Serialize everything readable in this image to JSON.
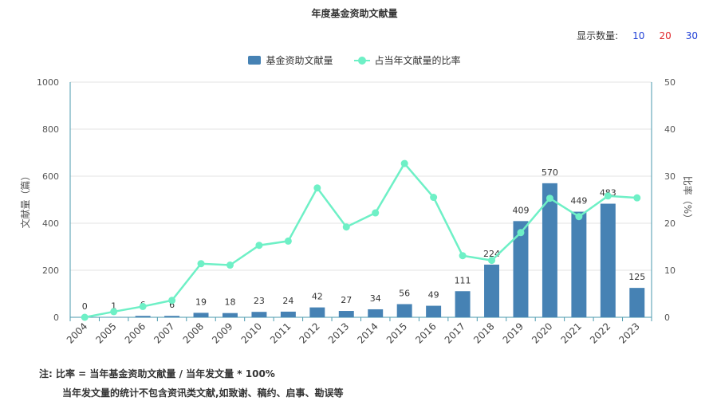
{
  "title": "年度基金资助文献量",
  "count_selector": {
    "label": "显示数量:",
    "options": [
      "10",
      "20",
      "30"
    ]
  },
  "legend": {
    "bar": "基金资助文献量",
    "line": "占当年文献量的比率"
  },
  "colors": {
    "bar": "#4682b4",
    "line": "#6ef0c6",
    "axis": "#4a9aad",
    "grid": "#e3e3e3"
  },
  "notes": {
    "line1": "注:  比率 = 当年基金资助文献量 / 当年发文量 * 100%",
    "line2": "当年发文量的统计不包含资讯类文献,如致谢、稿约、启事、勘误等"
  },
  "chart_data": {
    "type": "bar",
    "title": "年度基金资助文献量",
    "ylabel": "文献量（篇）",
    "y2label": "比率（%）",
    "ylim": [
      0,
      1000
    ],
    "y2lim": [
      0,
      50
    ],
    "yticks": [
      0,
      200,
      400,
      600,
      800,
      1000
    ],
    "y2ticks": [
      0,
      10,
      20,
      30,
      40,
      50
    ],
    "categories": [
      "2004",
      "2005",
      "2006",
      "2007",
      "2008",
      "2009",
      "2010",
      "2011",
      "2012",
      "2013",
      "2014",
      "2015",
      "2016",
      "2017",
      "2018",
      "2019",
      "2020",
      "2021",
      "2022",
      "2023"
    ],
    "series": [
      {
        "name": "基金资助文献量",
        "type": "bar",
        "axis": "left",
        "values": [
          0,
          1,
          6,
          6,
          19,
          18,
          23,
          24,
          42,
          27,
          34,
          56,
          49,
          111,
          224,
          409,
          570,
          449,
          483,
          125
        ]
      },
      {
        "name": "占当年文献量的比率",
        "type": "line",
        "axis": "right",
        "values": [
          0,
          1.2,
          2.3,
          3.6,
          11.4,
          11.1,
          15.3,
          16.2,
          27.5,
          19.2,
          22.2,
          32.7,
          25.5,
          13.1,
          12.1,
          18,
          25.3,
          21.4,
          25.8,
          25.4
        ]
      }
    ],
    "grid": true,
    "legend_position": "top-center"
  }
}
